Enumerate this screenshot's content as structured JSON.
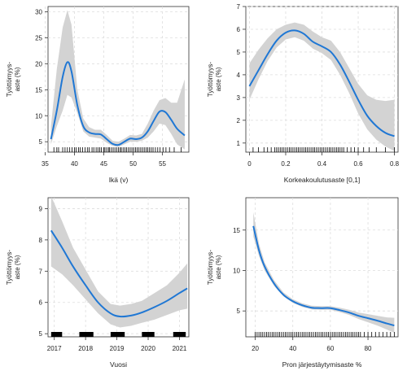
{
  "colors": {
    "line": "#1f77d4",
    "band": "#d3d3d3",
    "grid": "#dddddd",
    "rug": "#000000"
  },
  "chart_data": [
    {
      "type": "line",
      "xlabel": "Ikä (v)",
      "ylabel": [
        "Työttömyys-",
        "aste (%)"
      ],
      "xlim": [
        35.5,
        59.5
      ],
      "ylim": [
        3,
        31
      ],
      "xticks": [
        35,
        40,
        45,
        50,
        55
      ],
      "yticks": [
        5,
        10,
        15,
        20,
        25,
        30
      ],
      "grid": true,
      "series": [
        {
          "x": [
            36,
            37,
            38,
            38.8,
            39.5,
            40.5,
            41.5,
            42.5,
            43.5,
            44.5,
            45.5,
            46.5,
            47.5,
            48.5,
            49.5,
            50.5,
            51.5,
            52.5,
            53.5,
            54.5,
            55.5,
            56.5,
            57.5,
            58.8
          ],
          "y": [
            5.5,
            11,
            17.5,
            20.3,
            18.5,
            12,
            8,
            6.8,
            6.5,
            6.4,
            5.5,
            4.6,
            4.4,
            5,
            5.6,
            5.5,
            5.8,
            7,
            9,
            10.8,
            10.7,
            9.2,
            7.5,
            6.2
          ],
          "lower": [
            4.5,
            8,
            11,
            14,
            13.5,
            10.5,
            7,
            6,
            5.8,
            5.6,
            4.8,
            4.2,
            4.0,
            4.5,
            5.0,
            5.0,
            5.2,
            5.8,
            7,
            8.5,
            8.2,
            6.5,
            4.5,
            3.5
          ],
          "upper": [
            8,
            19,
            27,
            30.3,
            27.5,
            15,
            9.5,
            7.8,
            7.3,
            7.3,
            6.3,
            5.2,
            5.0,
            5.6,
            6.3,
            6.2,
            6.5,
            8.5,
            11,
            13,
            13.4,
            12.5,
            12.5,
            17
          ]
        }
      ],
      "rug": [
        36.5,
        37,
        37.3,
        38,
        38.4,
        38.8,
        39.2,
        39.6,
        40,
        40.3,
        40.7,
        41,
        41.4,
        41.8,
        42.2,
        42.5,
        43,
        43.3,
        43.7,
        44,
        44.3,
        44.6,
        45,
        45.2,
        45.5,
        45.8,
        46,
        46.3,
        46.6,
        46.9,
        47.2,
        47.5,
        47.8,
        48,
        48.3,
        48.6,
        48.9,
        49.2,
        49.5,
        49.8,
        50.1,
        50.4,
        50.7,
        51,
        51.3,
        51.6,
        51.9,
        52.2,
        52.5,
        52.8,
        53.1,
        53.4,
        53.8,
        54.2,
        54.6,
        55.1,
        55.6,
        56.2,
        57,
        58.2
      ]
    },
    {
      "type": "line",
      "xlabel": "Korkeakoulutusaste [0,1]",
      "ylabel": [
        "Työttömyys-",
        "aste (%)"
      ],
      "xlim": [
        -0.02,
        0.82
      ],
      "ylim": [
        0.6,
        7
      ],
      "xticks": [
        0,
        0.2,
        0.4,
        0.6,
        0.8
      ],
      "yticks": [
        1,
        2,
        3,
        4,
        5,
        6,
        7
      ],
      "grid": true,
      "series": [
        {
          "x": [
            0,
            0.05,
            0.1,
            0.15,
            0.2,
            0.25,
            0.3,
            0.35,
            0.4,
            0.45,
            0.5,
            0.55,
            0.6,
            0.65,
            0.7,
            0.75,
            0.8
          ],
          "y": [
            3.5,
            4.2,
            4.9,
            5.5,
            5.85,
            5.95,
            5.8,
            5.45,
            5.25,
            5.0,
            4.45,
            3.7,
            2.9,
            2.2,
            1.75,
            1.45,
            1.3
          ],
          "lower": [
            2.9,
            3.8,
            4.6,
            5.2,
            5.55,
            5.65,
            5.5,
            5.15,
            4.95,
            4.65,
            4.0,
            3.2,
            2.3,
            1.6,
            1.15,
            0.85,
            0.65
          ],
          "upper": [
            4.5,
            5.1,
            5.6,
            6.0,
            6.2,
            6.3,
            6.2,
            5.9,
            5.65,
            5.5,
            5.0,
            4.3,
            3.6,
            3.1,
            2.9,
            2.85,
            2.9
          ]
        }
      ],
      "rug": [
        0.02,
        0.05,
        0.08,
        0.1,
        0.12,
        0.14,
        0.15,
        0.16,
        0.17,
        0.18,
        0.19,
        0.2,
        0.21,
        0.22,
        0.23,
        0.24,
        0.25,
        0.26,
        0.27,
        0.28,
        0.29,
        0.3,
        0.31,
        0.32,
        0.33,
        0.34,
        0.35,
        0.36,
        0.37,
        0.38,
        0.39,
        0.4,
        0.41,
        0.42,
        0.43,
        0.44,
        0.45,
        0.46,
        0.47,
        0.48,
        0.49,
        0.5,
        0.51,
        0.52,
        0.54,
        0.56,
        0.58,
        0.6,
        0.63,
        0.66,
        0.7,
        0.75,
        0.8
      ]
    },
    {
      "type": "line",
      "xlabel": "Vuosi",
      "ylabel": [
        "Työttömyys-",
        "aste (%)"
      ],
      "xlim": [
        2016.8,
        2021.3
      ],
      "ylim": [
        4.9,
        9.35
      ],
      "xticks": [
        2017,
        2018,
        2019,
        2020,
        2021
      ],
      "yticks": [
        5,
        6,
        7,
        8,
        9
      ],
      "grid": true,
      "series": [
        {
          "x": [
            2016.9,
            2017.25,
            2017.6,
            2018.0,
            2018.4,
            2018.8,
            2019.1,
            2019.45,
            2019.8,
            2020.2,
            2020.6,
            2021.0,
            2021.25
          ],
          "y": [
            8.3,
            7.75,
            7.15,
            6.55,
            6.0,
            5.65,
            5.55,
            5.58,
            5.68,
            5.85,
            6.05,
            6.3,
            6.45
          ],
          "lower": [
            7.15,
            6.9,
            6.55,
            6.1,
            5.65,
            5.3,
            5.2,
            5.25,
            5.35,
            5.45,
            5.6,
            5.75,
            5.8
          ],
          "upper": [
            9.4,
            8.6,
            7.75,
            7.05,
            6.35,
            5.95,
            5.9,
            5.95,
            6.05,
            6.3,
            6.55,
            6.95,
            7.25
          ]
        }
      ],
      "rug_blocks": [
        [
          2016.9,
          2017.25
        ],
        [
          2017.8,
          2018.25
        ],
        [
          2018.8,
          2019.25
        ],
        [
          2019.8,
          2020.2
        ],
        [
          2020.8,
          2021.2
        ]
      ]
    },
    {
      "type": "line",
      "xlabel": "Pron järjestäytymisaste %",
      "ylabel": [
        "Työttömyys-",
        "aste (%)"
      ],
      "xlim": [
        15,
        96
      ],
      "ylim": [
        1.8,
        19
      ],
      "xticks": [
        20,
        40,
        60,
        80
      ],
      "yticks": [
        5,
        10,
        15
      ],
      "grid": true,
      "series": [
        {
          "x": [
            19,
            22,
            25,
            30,
            35,
            40,
            45,
            50,
            55,
            60,
            65,
            70,
            75,
            80,
            85,
            90,
            94
          ],
          "y": [
            15.5,
            12.5,
            10.5,
            8.4,
            7.0,
            6.2,
            5.7,
            5.4,
            5.35,
            5.35,
            5.1,
            4.8,
            4.4,
            4.1,
            3.8,
            3.45,
            3.2
          ],
          "lower": [
            14.2,
            11.8,
            10.0,
            8.1,
            6.8,
            6.0,
            5.5,
            5.2,
            5.15,
            5.15,
            4.85,
            4.5,
            4.0,
            3.6,
            3.2,
            2.7,
            2.3
          ],
          "upper": [
            17.2,
            13.3,
            11.0,
            8.8,
            7.3,
            6.45,
            5.95,
            5.65,
            5.6,
            5.6,
            5.4,
            5.15,
            4.8,
            4.6,
            4.4,
            4.2,
            4.15
          ]
        }
      ],
      "rug": [
        20,
        21,
        22,
        23,
        24,
        25,
        26,
        27,
        28,
        29,
        30,
        31,
        32,
        33,
        34,
        35,
        36,
        37,
        38,
        39,
        40,
        41,
        42,
        43,
        44,
        45,
        46,
        47,
        48,
        49,
        50,
        51,
        52,
        53,
        54,
        55,
        56,
        57,
        58,
        59,
        60,
        61,
        62,
        63,
        64,
        65,
        66,
        67,
        68,
        69,
        70,
        71,
        72,
        73,
        74,
        75,
        76,
        78,
        80,
        82,
        84,
        86,
        88,
        90,
        92,
        94
      ]
    }
  ]
}
